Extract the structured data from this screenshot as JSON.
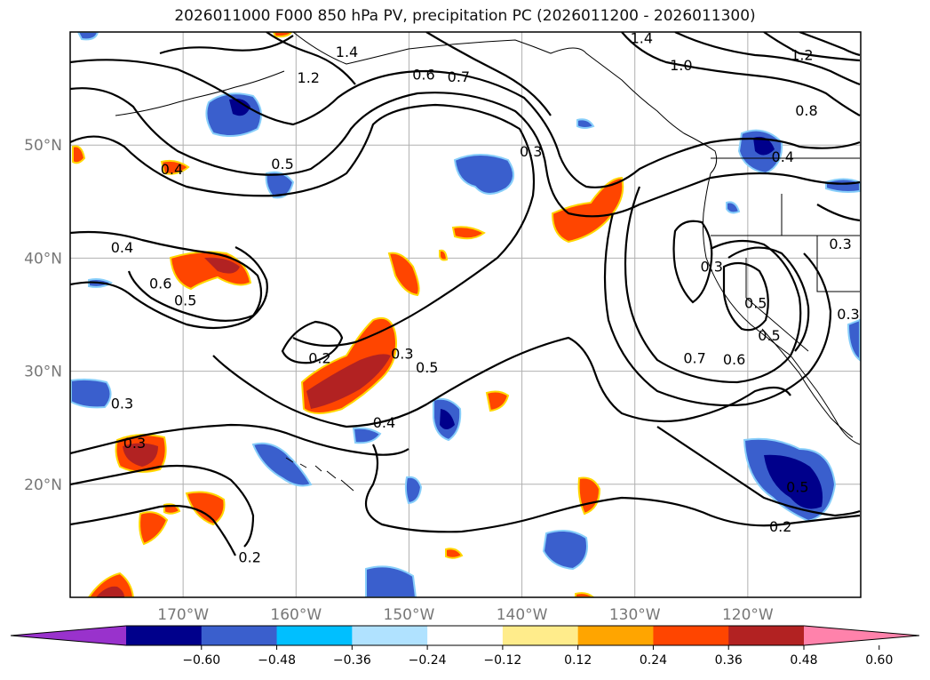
{
  "title": "2026011000 F000 850 hPa PV, precipitation PC (2026011200 - 2026011300)",
  "map": {
    "lon_ticks": [
      {
        "lon": -170,
        "label": "170°W"
      },
      {
        "lon": -160,
        "label": "160°W"
      },
      {
        "lon": -150,
        "label": "150°W"
      },
      {
        "lon": -140,
        "label": "140°W"
      },
      {
        "lon": -130,
        "label": "130°W"
      },
      {
        "lon": -120,
        "label": "120°W"
      }
    ],
    "lat_ticks": [
      {
        "lat": 20,
        "label": "20°N"
      },
      {
        "lat": 30,
        "label": "30°N"
      },
      {
        "lat": 40,
        "label": "40°N"
      },
      {
        "lat": 50,
        "label": "50°N"
      }
    ],
    "extent": {
      "lon_min": -180,
      "lon_max": -110,
      "lat_min": 10,
      "lat_max": 60
    }
  },
  "contour_labels": [
    {
      "text": "1.4",
      "lon": -155.5,
      "lat": 58.2
    },
    {
      "text": "1.2",
      "lon": -158.9,
      "lat": 55.9
    },
    {
      "text": "0.6",
      "lon": -148.7,
      "lat": 56.2
    },
    {
      "text": "0.7",
      "lon": -145.6,
      "lat": 56.0
    },
    {
      "text": "1.4",
      "lon": -129.4,
      "lat": 59.4
    },
    {
      "text": "1.2",
      "lon": -115.2,
      "lat": 57.9
    },
    {
      "text": "1.0",
      "lon": -125.9,
      "lat": 57.0
    },
    {
      "text": "0.8",
      "lon": -114.8,
      "lat": 53.0
    },
    {
      "text": "0.4",
      "lon": -171.0,
      "lat": 47.8
    },
    {
      "text": "0.5",
      "lon": -161.2,
      "lat": 48.3
    },
    {
      "text": "0.3",
      "lon": -139.2,
      "lat": 49.4
    },
    {
      "text": "0.4",
      "lon": -116.9,
      "lat": 48.9
    },
    {
      "text": "0.3",
      "lon": -111.8,
      "lat": 41.2
    },
    {
      "text": "0.4",
      "lon": -175.4,
      "lat": 40.9
    },
    {
      "text": "0.6",
      "lon": -172.0,
      "lat": 37.7
    },
    {
      "text": "0.5",
      "lon": -169.8,
      "lat": 36.2
    },
    {
      "text": "0.3",
      "lon": -123.2,
      "lat": 39.2
    },
    {
      "text": "0.5",
      "lon": -119.3,
      "lat": 36.0
    },
    {
      "text": "0.5",
      "lon": -118.1,
      "lat": 33.1
    },
    {
      "text": "0.3",
      "lon": -111.1,
      "lat": 35.0
    },
    {
      "text": "0.2",
      "lon": -157.9,
      "lat": 31.1
    },
    {
      "text": "0.3",
      "lon": -150.6,
      "lat": 31.5
    },
    {
      "text": "0.5",
      "lon": -148.4,
      "lat": 30.3
    },
    {
      "text": "0.7",
      "lon": -124.7,
      "lat": 31.1
    },
    {
      "text": "0.6",
      "lon": -121.2,
      "lat": 31.0
    },
    {
      "text": "0.3",
      "lon": -175.4,
      "lat": 27.1
    },
    {
      "text": "0.4",
      "lon": -152.2,
      "lat": 25.4
    },
    {
      "text": "0.3",
      "lon": -174.3,
      "lat": 23.6
    },
    {
      "text": "0.5",
      "lon": -115.6,
      "lat": 19.7
    },
    {
      "text": "0.2",
      "lon": -164.1,
      "lat": 13.5
    },
    {
      "text": "0.2",
      "lon": -117.1,
      "lat": 16.2
    }
  ],
  "colorbar": {
    "ticks": [
      "−0.60",
      "−0.48",
      "−0.36",
      "−0.24",
      "−0.12",
      "0.12",
      "0.24",
      "0.36",
      "0.48",
      "0.60"
    ],
    "colors": [
      "#9932cc",
      "#00008b",
      "#3a5fcd",
      "#00bfff",
      "#b0e2ff",
      "#ffffff",
      "#ffec8b",
      "#ffa500",
      "#ff4500",
      "#b22222",
      "#ff82ab"
    ]
  },
  "precip_colors": {
    "neg_outer": "#87cefa",
    "neg_mid": "#3a5fcd",
    "neg_core": "#00008b",
    "pos_outer": "#ffd700",
    "pos_mid": "#ff4500",
    "pos_core": "#b22222"
  }
}
